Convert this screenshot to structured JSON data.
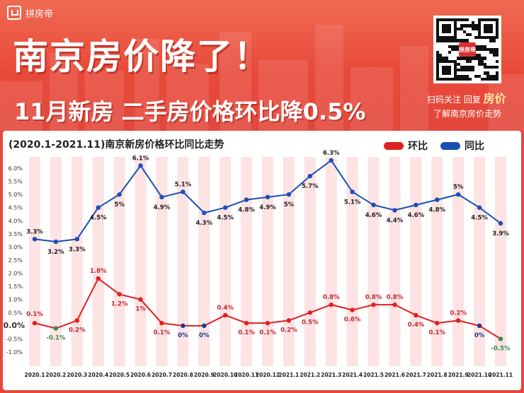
{
  "banner": {
    "logo_text": "拼房帝",
    "title": "南京房价降了！",
    "subtitle": "11月新房 二手房价格环比降0.5%",
    "qr_badge": "拼房帝",
    "scan_text": "扫码关注 回复",
    "scan_keyword": "房价",
    "scan_text2": "了解南京房价走势"
  },
  "colors": {
    "mom": "#e02020",
    "yoy": "#1a4fb4",
    "band": "#fde3e3",
    "mom_label": "#c0282d",
    "yoy_label": "#222222",
    "neg_label": "#3a8a55",
    "zero_label": "#1a3a90"
  },
  "chart_data": {
    "type": "line",
    "title": "(2020.1-2021.11)南京新房价格环比同比走势",
    "x": [
      "2020.1",
      "2020.2",
      "2020.3",
      "2020.4",
      "2020.5",
      "2020.6",
      "2020.7",
      "2020.8",
      "2020.9",
      "2020.10",
      "2020.11",
      "2020.12",
      "2021.1",
      "2021.2",
      "2021.3",
      "2021.4",
      "2021.5",
      "2021.6",
      "2021.7",
      "2021.8",
      "2021.9",
      "2021.10",
      "2021.11"
    ],
    "y_ticks": [
      "6.0%",
      "5.5%",
      "5.0%",
      "4.5%",
      "4.0%",
      "3.5%",
      "3.0%",
      "2.5%",
      "2.0%",
      "1.5%",
      "1.0%",
      "0.5%",
      "0.0%",
      "-0.5%",
      "-1.0%"
    ],
    "ylim": [
      -1.0,
      6.0
    ],
    "legend_position": "top-right",
    "series": [
      {
        "name": "环比",
        "values": [
          0.1,
          -0.1,
          0.2,
          1.8,
          1.2,
          1.0,
          0.1,
          0.0,
          0.0,
          0.4,
          0.1,
          0.1,
          0.2,
          0.5,
          0.8,
          0.6,
          0.8,
          0.8,
          0.4,
          0.1,
          0.2,
          0.0,
          -0.5
        ],
        "labels": [
          "0.1%",
          "-0.1%",
          "0.2%",
          "1.8%",
          "1.2%",
          "1%",
          "0.1%",
          "0%",
          "0%",
          "0.4%",
          "0.1%",
          "0.1%",
          "0.2%",
          "0.5%",
          "0.8%",
          "0.6%",
          "0.8%",
          "0.8%",
          "0.4%",
          "0.1%",
          "0.2%",
          "0%",
          "-0.5%"
        ]
      },
      {
        "name": "同比",
        "values": [
          3.3,
          3.2,
          3.3,
          4.5,
          5.0,
          6.1,
          4.9,
          5.1,
          4.3,
          4.5,
          4.8,
          4.9,
          5.0,
          5.7,
          6.3,
          5.1,
          4.6,
          4.4,
          4.6,
          4.8,
          5.0,
          4.5,
          3.9
        ],
        "labels": [
          "3.3%",
          "3.2%",
          "3.3%",
          "4.5%",
          "5%",
          "6.1%",
          "4.9%",
          "5.1%",
          "4.3%",
          "4.5%",
          "4.8%",
          "4.9%",
          "5%",
          "5.7%",
          "6.3%",
          "5.1%",
          "4.6%",
          "4.4%",
          "4.6%",
          "4.8%",
          "5%",
          "4.5%",
          "3.9%"
        ]
      }
    ]
  }
}
